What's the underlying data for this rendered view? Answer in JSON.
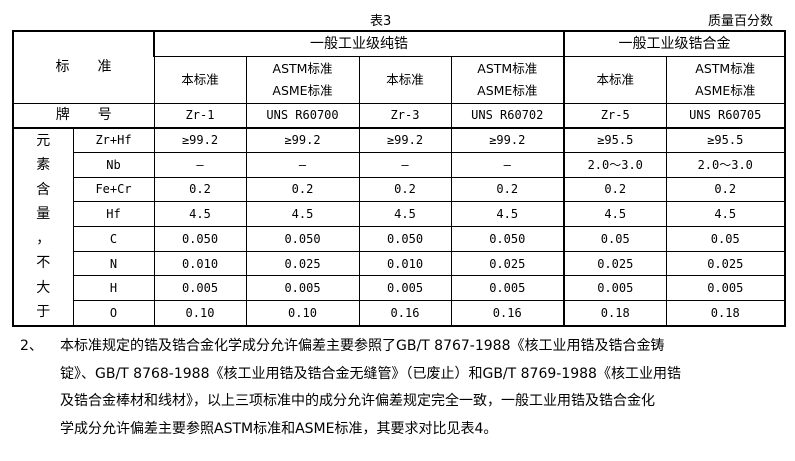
{
  "caption": "表3",
  "unit": "质量百分数",
  "header": {
    "standard_label": "标　　准",
    "group1": "一般工业级纯锆",
    "group2": "一般工业级锆合金",
    "sub": [
      "本标准",
      "ASTM标准\nASME标准",
      "本标准",
      "ASTM标准\nASME标准",
      "本标准",
      "ASTM标准\nASME标准"
    ],
    "grade_label": "牌　　号",
    "grades": [
      "Zr-1",
      "UNS R60700",
      "Zr-3",
      "UNS R60702",
      "Zr-5",
      "UNS R60705"
    ]
  },
  "side_label": [
    "元",
    "素",
    "含",
    "量",
    "，",
    "不",
    "大",
    "于"
  ],
  "rows": [
    {
      "el": "Zr+Hf",
      "v": [
        "≥99.2",
        "≥99.2",
        "≥99.2",
        "≥99.2",
        "≥95.5",
        "≥95.5"
      ]
    },
    {
      "el": "Nb",
      "v": [
        "—",
        "—",
        "—",
        "—",
        "2.0～3.0",
        "2.0～3.0"
      ]
    },
    {
      "el": "Fe+Cr",
      "v": [
        "0.2",
        "0.2",
        "0.2",
        "0.2",
        "0.2",
        "0.2"
      ]
    },
    {
      "el": "Hf",
      "v": [
        "4.5",
        "4.5",
        "4.5",
        "4.5",
        "4.5",
        "4.5"
      ]
    },
    {
      "el": "C",
      "v": [
        "0.050",
        "0.050",
        "0.050",
        "0.050",
        "0.05",
        "0.05"
      ]
    },
    {
      "el": "N",
      "v": [
        "0.010",
        "0.025",
        "0.010",
        "0.025",
        "0.025",
        "0.025"
      ]
    },
    {
      "el": "H",
      "v": [
        "0.005",
        "0.005",
        "0.005",
        "0.005",
        "0.005",
        "0.005"
      ]
    },
    {
      "el": "O",
      "v": [
        "0.10",
        "0.10",
        "0.16",
        "0.16",
        "0.18",
        "0.18"
      ]
    }
  ],
  "note": {
    "num": "2、",
    "lines": [
      "本标准规定的锆及锆合金化学成分允许偏差主要参照了GB/T 8767-1988《核工业用锆及锆合金铸",
      "锭》、GB/T 8768-1988《核工业用锆及锆合金无缝管》（已废止）和GB/T 8769-1988《核工业用锆",
      "及锆合金棒材和线材》，以上三项标准中的成分允许偏差规定完全一致，一般工业用锆及锆合金化",
      "学成分允许偏差主要参照ASTM标准和ASME标准，其要求对比见表4。"
    ]
  }
}
